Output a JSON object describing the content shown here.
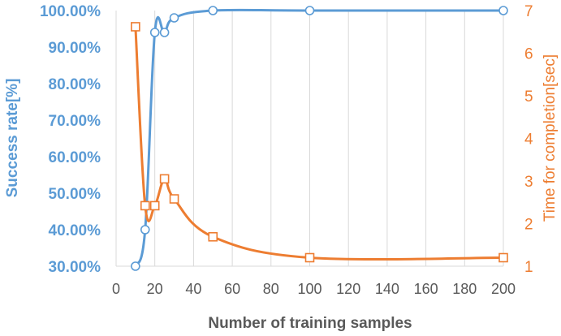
{
  "chart_data": {
    "type": "line",
    "xlabel": "Number of training samples",
    "ylabel": "Success rate[%]",
    "y2label": "Time for completion[sec]",
    "xlim": [
      0,
      200
    ],
    "ylim": [
      30,
      100
    ],
    "y2lim": [
      1,
      7
    ],
    "x_ticks": [
      "0",
      "20",
      "40",
      "60",
      "80",
      "100",
      "120",
      "140",
      "160",
      "180",
      "200"
    ],
    "y_ticks": [
      "30.00%",
      "40.00%",
      "50.00%",
      "60.00%",
      "70.00%",
      "80.00%",
      "90.00%",
      "100.00%"
    ],
    "y2_ticks": [
      "1",
      "2",
      "3",
      "4",
      "5",
      "6",
      "7"
    ],
    "grid": "vertical",
    "series": [
      {
        "axis": "left",
        "marker": "circle",
        "color": "#5b9bd5",
        "x": [
          10,
          15,
          20,
          25,
          30,
          50,
          100,
          200
        ],
        "values": [
          30,
          40,
          94,
          94,
          98,
          100,
          100,
          100
        ]
      },
      {
        "axis": "right",
        "marker": "square",
        "color": "#ed7d31",
        "x": [
          10,
          15,
          20,
          25,
          30,
          50,
          100,
          200
        ],
        "values": [
          6.62,
          2.42,
          2.42,
          3.05,
          2.58,
          1.69,
          1.2,
          1.2
        ]
      }
    ]
  }
}
